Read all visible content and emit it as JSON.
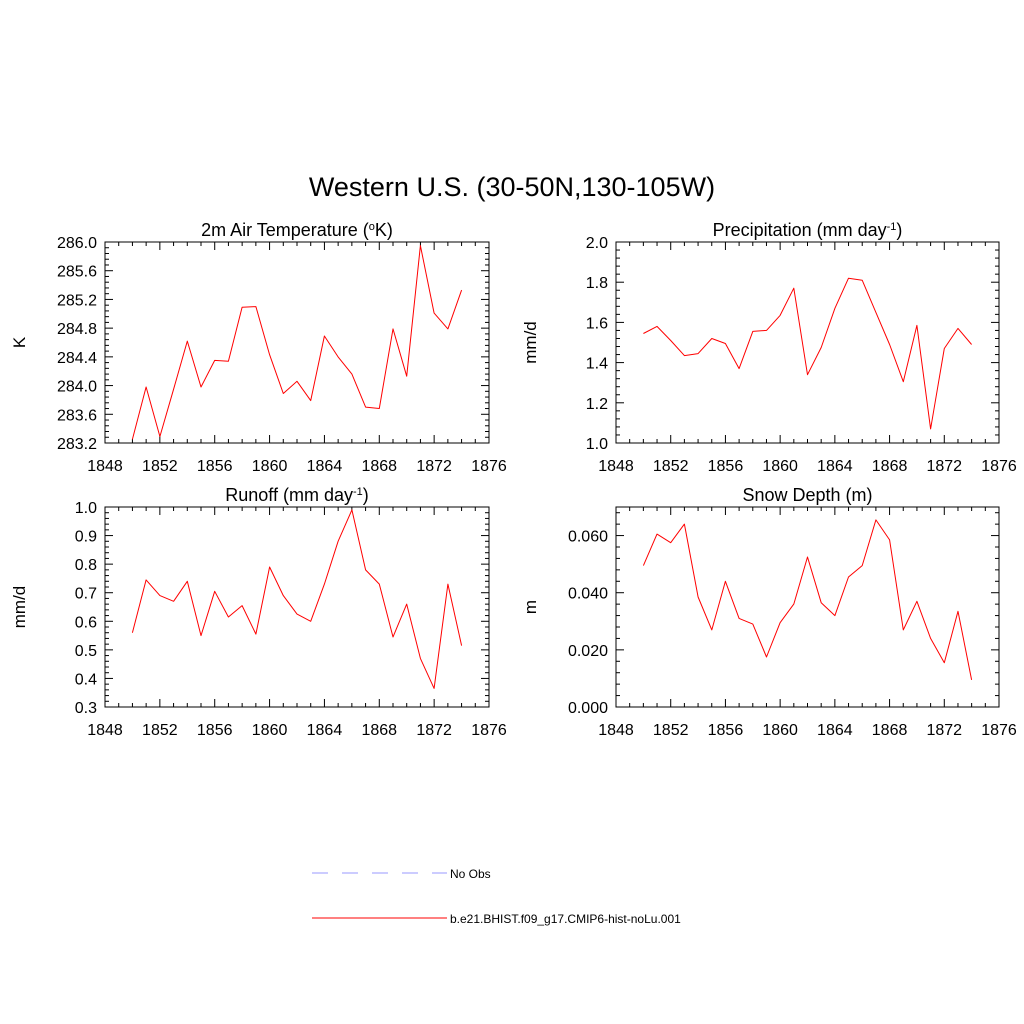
{
  "figure": {
    "title": "Western U.S. (30-50N,130-105W)"
  },
  "chart_data": [
    {
      "id": "temp",
      "type": "line",
      "title": "2m Air Temperature (",
      "title_sup": "o",
      "title_tail": "K)",
      "ylabel": "K",
      "xlim": [
        1848,
        1876
      ],
      "ylim": [
        283.2,
        286.0
      ],
      "xticks": [
        1848,
        1852,
        1856,
        1860,
        1864,
        1868,
        1872,
        1876
      ],
      "yticks": [
        "283.2",
        "283.6",
        "284.0",
        "284.4",
        "284.8",
        "285.2",
        "285.6",
        "286.0"
      ],
      "series": [
        {
          "name": "b.e21.BHIST.f09_g17.CMIP6-hist-noLu.001",
          "color": "#ff0000",
          "x": [
            1850,
            1851,
            1852,
            1853,
            1854,
            1855,
            1856,
            1857,
            1858,
            1859,
            1860,
            1861,
            1862,
            1863,
            1864,
            1865,
            1866,
            1867,
            1868,
            1869,
            1870,
            1871,
            1872,
            1873,
            1874
          ],
          "y": [
            283.25,
            283.98,
            283.29,
            283.95,
            284.62,
            283.98,
            284.35,
            284.34,
            285.09,
            285.1,
            284.43,
            283.89,
            284.06,
            283.79,
            284.69,
            284.4,
            284.16,
            283.7,
            283.68,
            284.79,
            284.13,
            285.95,
            285.01,
            284.79,
            285.33
          ]
        }
      ]
    },
    {
      "id": "precip",
      "type": "line",
      "title": "Precipitation (mm day",
      "title_sup": "-1",
      "title_tail": ")",
      "ylabel": "mm/d",
      "xlim": [
        1848,
        1876
      ],
      "ylim": [
        1.0,
        2.0
      ],
      "xticks": [
        1848,
        1852,
        1856,
        1860,
        1864,
        1868,
        1872,
        1876
      ],
      "yticks": [
        "1.0",
        "1.2",
        "1.4",
        "1.6",
        "1.8",
        "2.0"
      ],
      "series": [
        {
          "name": "b.e21.BHIST.f09_g17.CMIP6-hist-noLu.001",
          "color": "#ff0000",
          "x": [
            1850,
            1851,
            1852,
            1853,
            1854,
            1855,
            1856,
            1857,
            1858,
            1859,
            1860,
            1861,
            1862,
            1863,
            1864,
            1865,
            1866,
            1867,
            1868,
            1869,
            1870,
            1871,
            1872,
            1873,
            1874
          ],
          "y": [
            1.545,
            1.58,
            1.51,
            1.435,
            1.445,
            1.52,
            1.495,
            1.37,
            1.555,
            1.56,
            1.635,
            1.77,
            1.34,
            1.475,
            1.67,
            1.82,
            1.81,
            1.65,
            1.49,
            1.305,
            1.585,
            1.07,
            1.47,
            1.57,
            1.49
          ]
        }
      ]
    },
    {
      "id": "runoff",
      "type": "line",
      "title": "Runoff (mm day",
      "title_sup": "-1",
      "title_tail": ")",
      "ylabel": "mm/d",
      "xlim": [
        1848,
        1876
      ],
      "ylim": [
        0.3,
        1.0
      ],
      "xticks": [
        1848,
        1852,
        1856,
        1860,
        1864,
        1868,
        1872,
        1876
      ],
      "yticks": [
        "0.3",
        "0.4",
        "0.5",
        "0.6",
        "0.7",
        "0.8",
        "0.9",
        "1.0"
      ],
      "series": [
        {
          "name": "b.e21.BHIST.f09_g17.CMIP6-hist-noLu.001",
          "color": "#ff0000",
          "x": [
            1850,
            1851,
            1852,
            1853,
            1854,
            1855,
            1856,
            1857,
            1858,
            1859,
            1860,
            1861,
            1862,
            1863,
            1864,
            1865,
            1866,
            1867,
            1868,
            1869,
            1870,
            1871,
            1872,
            1873,
            1874
          ],
          "y": [
            0.56,
            0.745,
            0.69,
            0.67,
            0.74,
            0.55,
            0.705,
            0.615,
            0.655,
            0.555,
            0.79,
            0.69,
            0.625,
            0.6,
            0.73,
            0.88,
            0.99,
            0.78,
            0.73,
            0.545,
            0.66,
            0.47,
            0.365,
            0.73,
            0.515
          ]
        }
      ]
    },
    {
      "id": "snow",
      "type": "line",
      "title": "Snow Depth (m)",
      "title_sup": "",
      "title_tail": "",
      "ylabel": "m",
      "xlim": [
        1848,
        1876
      ],
      "ylim": [
        0.0,
        0.07
      ],
      "xticks": [
        1848,
        1852,
        1856,
        1860,
        1864,
        1868,
        1872,
        1876
      ],
      "yticks": [
        "0.000",
        "0.020",
        "0.040",
        "0.060"
      ],
      "series": [
        {
          "name": "b.e21.BHIST.f09_g17.CMIP6-hist-noLu.001",
          "color": "#ff0000",
          "x": [
            1850,
            1851,
            1852,
            1853,
            1854,
            1855,
            1856,
            1857,
            1858,
            1859,
            1860,
            1861,
            1862,
            1863,
            1864,
            1865,
            1866,
            1867,
            1868,
            1869,
            1870,
            1871,
            1872,
            1873,
            1874
          ],
          "y": [
            0.0495,
            0.0605,
            0.0575,
            0.064,
            0.0385,
            0.027,
            0.044,
            0.031,
            0.029,
            0.0175,
            0.0295,
            0.036,
            0.0525,
            0.0365,
            0.032,
            0.0455,
            0.0495,
            0.0655,
            0.0585,
            0.027,
            0.037,
            0.024,
            0.0155,
            0.0335,
            0.0095
          ]
        }
      ]
    }
  ],
  "legend": {
    "items": [
      {
        "label": "No Obs",
        "color": "#9999ff",
        "style": "dashed"
      },
      {
        "label": "b.e21.BHIST.f09_g17.CMIP6-hist-noLu.001",
        "color": "#ff0000",
        "style": "solid"
      }
    ]
  }
}
